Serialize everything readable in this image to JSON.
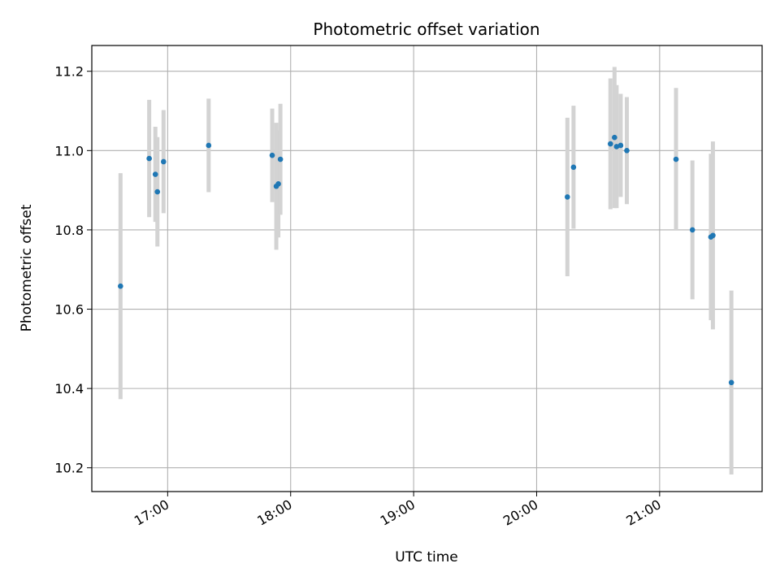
{
  "chart_data": {
    "type": "scatter",
    "title": "Photometric offset variation",
    "xlabel": "UTC time",
    "ylabel": "Photometric offset",
    "x_axis": "time",
    "xlim": [
      "16:23",
      "21:50"
    ],
    "ylim": [
      10.14,
      11.265
    ],
    "x_ticks": [
      "17:00",
      "18:00",
      "19:00",
      "20:00",
      "21:00"
    ],
    "y_ticks": [
      10.2,
      10.4,
      10.6,
      10.8,
      11.0,
      11.2
    ],
    "grid": true,
    "colors": {
      "point": "#1f77b4",
      "errorbar": "#d3d3d3",
      "grid": "#b0b0b0"
    },
    "points": [
      {
        "x": "16:37",
        "y": 10.658,
        "yerr": 0.285
      },
      {
        "x": "16:51",
        "y": 10.98,
        "yerr": 0.148
      },
      {
        "x": "16:54",
        "y": 10.94,
        "yerr": 0.12
      },
      {
        "x": "16:55",
        "y": 10.896,
        "yerr": 0.138
      },
      {
        "x": "16:58",
        "y": 10.972,
        "yerr": 0.13
      },
      {
        "x": "17:20",
        "y": 11.013,
        "yerr": 0.118
      },
      {
        "x": "17:51",
        "y": 10.988,
        "yerr": 0.118
      },
      {
        "x": "17:53",
        "y": 10.91,
        "yerr": 0.16
      },
      {
        "x": "17:54",
        "y": 10.916,
        "yerr": 0.135
      },
      {
        "x": "17:55",
        "y": 10.978,
        "yerr": 0.14
      },
      {
        "x": "20:15",
        "y": 10.883,
        "yerr": 0.2
      },
      {
        "x": "20:18",
        "y": 10.958,
        "yerr": 0.155
      },
      {
        "x": "20:36",
        "y": 11.017,
        "yerr": 0.165
      },
      {
        "x": "20:38",
        "y": 11.033,
        "yerr": 0.178
      },
      {
        "x": "20:39",
        "y": 11.01,
        "yerr": 0.155
      },
      {
        "x": "20:41",
        "y": 11.013,
        "yerr": 0.13
      },
      {
        "x": "20:44",
        "y": 11.0,
        "yerr": 0.135
      },
      {
        "x": "21:08",
        "y": 10.978,
        "yerr": 0.18
      },
      {
        "x": "21:16",
        "y": 10.8,
        "yerr": 0.175
      },
      {
        "x": "21:25",
        "y": 10.782,
        "yerr": 0.21
      },
      {
        "x": "21:26",
        "y": 10.786,
        "yerr": 0.237
      },
      {
        "x": "21:35",
        "y": 10.415,
        "yerr": 0.232
      }
    ]
  }
}
